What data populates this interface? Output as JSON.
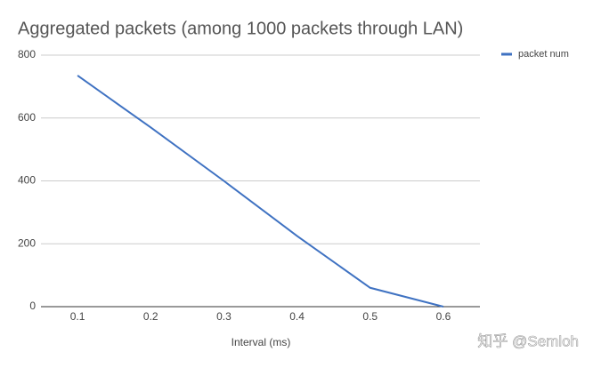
{
  "chart_data": {
    "type": "line",
    "title": "Aggregated packets (among 1000 packets through LAN)",
    "x_label": "Interval (ms)",
    "x": [
      0.1,
      0.2,
      0.3,
      0.4,
      0.5,
      0.6
    ],
    "series": [
      {
        "name": "packet num",
        "color": "#3f72c2",
        "values": [
          735,
          570,
          400,
          225,
          60,
          0
        ]
      }
    ],
    "xlim": [
      0.05,
      0.65
    ],
    "xticks": [
      0.1,
      0.2,
      0.3,
      0.4,
      0.5,
      0.6
    ],
    "ylim": [
      0,
      800
    ],
    "yticks": [
      0,
      200,
      400,
      600,
      800
    ],
    "grid": true,
    "legend": "right",
    "watermark": "知乎 @Semloh"
  }
}
